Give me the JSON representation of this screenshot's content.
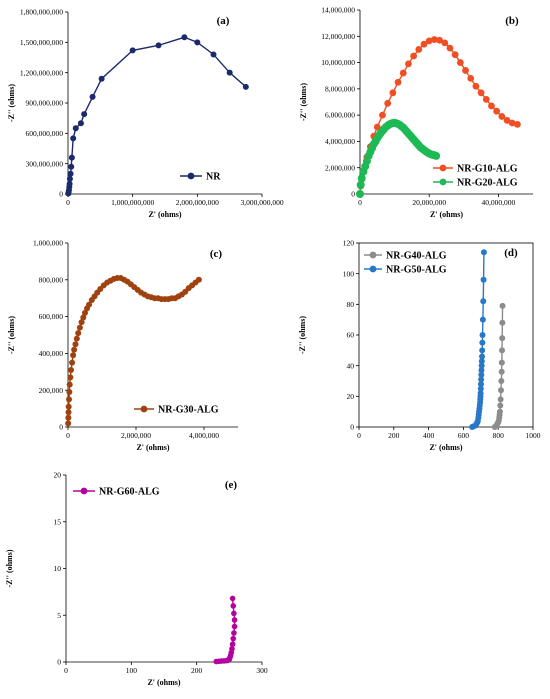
{
  "chart_data": [
    {
      "type": "line",
      "panel_label": "(a)",
      "xlabel": "Z' (ohms)",
      "ylabel": "-Z'' (ohms)",
      "xlim": [
        0,
        3000000000
      ],
      "ylim": [
        0,
        1800000000
      ],
      "xticks": [
        0,
        1000000000,
        2000000000,
        3000000000
      ],
      "xtick_labels": [
        "0",
        "1,000,000,000",
        "2,000,000,000",
        "3,000,000,000"
      ],
      "yticks": [
        0,
        300000000,
        600000000,
        900000000,
        1200000000,
        1500000000,
        1800000000
      ],
      "ytick_labels": [
        "0",
        "300,000,000",
        "600,000,000",
        "900,000,000",
        "1,200,000,000",
        "1,500,000,000",
        "1,800,000,000"
      ],
      "legend_position": "bottom-right",
      "series": [
        {
          "name": "NR",
          "color": "#1a2a6c",
          "marker_size": 3,
          "x": [
            5000000,
            10000000,
            15000000,
            20000000,
            25000000,
            30000000,
            40000000,
            50000000,
            60000000,
            80000000,
            120000000,
            200000000,
            250000000,
            380000000,
            520000000,
            1000000000,
            1400000000,
            1800000000,
            2000000000,
            2250000000,
            2500000000,
            2750000000
          ],
          "y": [
            5000000,
            20000000,
            40000000,
            70000000,
            100000000,
            150000000,
            200000000,
            270000000,
            360000000,
            550000000,
            650000000,
            700000000,
            790000000,
            960000000,
            1140000000,
            1420000000,
            1470000000,
            1550000000,
            1500000000,
            1380000000,
            1200000000,
            1060000000
          ]
        }
      ]
    },
    {
      "type": "line",
      "panel_label": "(b)",
      "xlabel": "Z' (ohms)",
      "ylabel": "-Z'' (ohms)",
      "xlim": [
        0,
        50000000
      ],
      "ylim": [
        0,
        14000000
      ],
      "xticks": [
        0,
        20000000,
        40000000
      ],
      "xtick_labels": [
        "0",
        "20,000,000",
        "40,000,000"
      ],
      "yticks": [
        0,
        2000000,
        4000000,
        6000000,
        8000000,
        10000000,
        12000000,
        14000000
      ],
      "ytick_labels": [
        "0",
        "2,000,000",
        "4,000,000",
        "6,000,000",
        "8,000,000",
        "10,000,000",
        "12,000,000",
        "14,000,000"
      ],
      "legend_position": "bottom-right",
      "series": [
        {
          "name": "NR-G10-ALG",
          "color": "#f04e23",
          "marker_size": 3.4,
          "x": [
            0,
            200000,
            500000,
            1000000,
            2000000,
            3000000,
            4000000,
            5000000,
            6500000,
            8000000,
            9500000,
            11000000,
            12500000,
            14000000,
            15500000,
            17000000,
            18500000,
            20000000,
            21500000,
            23000000,
            24500000,
            26000000,
            27500000,
            29000000,
            30500000,
            32000000,
            33500000,
            35000000,
            36500000,
            38000000,
            39500000,
            41000000,
            42500000,
            44000000,
            45500000
          ],
          "y": [
            0,
            600000,
            1100000,
            1800000,
            2800000,
            3600000,
            4400000,
            5100000,
            6000000,
            6900000,
            7700000,
            8500000,
            9200000,
            9900000,
            10500000,
            11000000,
            11400000,
            11650000,
            11750000,
            11700000,
            11500000,
            11100000,
            10600000,
            10000000,
            9400000,
            8800000,
            8200000,
            7700000,
            7200000,
            6700000,
            6300000,
            5900000,
            5600000,
            5400000,
            5300000
          ]
        },
        {
          "name": "NR-G20-ALG",
          "color": "#1db954",
          "marker_size": 4,
          "x": [
            0,
            200000,
            500000,
            1000000,
            1500000,
            2000000,
            2500000,
            3000000,
            3500000,
            4000000,
            4500000,
            5000000,
            5500000,
            6000000,
            6500000,
            7000000,
            7500000,
            8000000,
            8500000,
            9000000,
            9500000,
            10000000,
            10500000,
            11000000,
            11500000,
            12000000,
            12500000,
            13000000,
            13500000,
            14000000,
            14500000,
            15000000,
            15500000,
            16000000,
            16500000,
            17000000,
            17500000,
            18000000,
            18500000,
            19000000,
            19500000,
            20000000,
            20500000,
            21000000,
            21500000,
            22000000
          ],
          "y": [
            0,
            700000,
            1200000,
            1700000,
            2100000,
            2500000,
            2900000,
            3200000,
            3500000,
            3800000,
            4000000,
            4250000,
            4450000,
            4650000,
            4800000,
            4950000,
            5100000,
            5200000,
            5300000,
            5350000,
            5400000,
            5400000,
            5380000,
            5330000,
            5250000,
            5150000,
            5050000,
            4900000,
            4750000,
            4600000,
            4450000,
            4300000,
            4150000,
            4000000,
            3850000,
            3700000,
            3550000,
            3450000,
            3350000,
            3250000,
            3150000,
            3080000,
            3020000,
            2980000,
            2950000,
            2900000
          ]
        }
      ]
    },
    {
      "type": "line",
      "panel_label": "(c)",
      "xlabel": "Z' (ohms)",
      "ylabel": "-Z'' (ohms)",
      "xlim": [
        0,
        5000000
      ],
      "ylim": [
        0,
        1000000
      ],
      "xticks": [
        0,
        2000000,
        4000000
      ],
      "xtick_labels": [
        "0",
        "2,000,000",
        "4,000,000"
      ],
      "yticks": [
        0,
        200000,
        400000,
        600000,
        800000,
        1000000
      ],
      "ytick_labels": [
        "0",
        "200,000",
        "400,000",
        "600,000",
        "800,000",
        "1,000,000"
      ],
      "legend_position": "bottom-right",
      "series": [
        {
          "name": "NR-G30-ALG",
          "color": "#a0420f",
          "marker_size": 3,
          "x": [
            5000,
            10000,
            15000,
            20000,
            30000,
            40000,
            50000,
            70000,
            90000,
            120000,
            150000,
            180000,
            220000,
            260000,
            300000,
            350000,
            400000,
            450000,
            500000,
            560000,
            620000,
            700000,
            780000,
            860000,
            950000,
            1050000,
            1150000,
            1250000,
            1350000,
            1450000,
            1550000,
            1650000,
            1750000,
            1850000,
            1950000,
            2050000,
            2150000,
            2250000,
            2350000,
            2450000,
            2550000,
            2650000,
            2750000,
            2850000,
            2950000,
            3050000,
            3150000,
            3250000,
            3350000,
            3450000,
            3550000,
            3650000,
            3750000,
            3850000
          ],
          "y": [
            20000,
            50000,
            80000,
            110000,
            150000,
            190000,
            230000,
            270000,
            310000,
            350000,
            390000,
            420000,
            450000,
            480000,
            510000,
            540000,
            570000,
            595000,
            620000,
            645000,
            665000,
            690000,
            710000,
            730000,
            750000,
            770000,
            785000,
            795000,
            805000,
            810000,
            810000,
            800000,
            790000,
            775000,
            760000,
            745000,
            730000,
            720000,
            710000,
            705000,
            700000,
            700000,
            695000,
            695000,
            695000,
            700000,
            700000,
            710000,
            720000,
            735000,
            755000,
            770000,
            785000,
            800000
          ]
        }
      ]
    },
    {
      "type": "line",
      "panel_label": "(d)",
      "xlabel": "Z' (ohms)",
      "ylabel": "-Z'' (ohms)",
      "xlim": [
        0,
        1000
      ],
      "ylim": [
        0,
        120
      ],
      "xticks": [
        0,
        200,
        400,
        600,
        800,
        1000
      ],
      "xtick_labels": [
        "0",
        "200",
        "400",
        "600",
        "800",
        "1000"
      ],
      "yticks": [
        0,
        20,
        40,
        60,
        80,
        100,
        120
      ],
      "ytick_labels": [
        "0",
        "20",
        "40",
        "60",
        "80",
        "100",
        "120"
      ],
      "legend_position": "top-left",
      "series": [
        {
          "name": "NR-G40-ALG",
          "color": "#8c8c8c",
          "marker_size": 3,
          "x": [
            780,
            790,
            795,
            800,
            803,
            806,
            808,
            810,
            812,
            814,
            816,
            818,
            820,
            821,
            822,
            823,
            824,
            825
          ],
          "y": [
            0,
            1,
            2,
            3,
            4,
            6,
            8,
            10,
            14,
            18,
            24,
            30,
            36,
            42,
            50,
            58,
            68,
            79
          ]
        },
        {
          "name": "NR-G50-ALG",
          "color": "#2878c8",
          "marker_size": 3,
          "x": [
            650,
            660,
            670,
            675,
            680,
            683,
            686,
            688,
            690,
            692,
            694,
            696,
            697,
            698,
            699,
            700,
            701,
            702,
            703,
            704,
            705,
            706,
            707,
            708,
            709,
            710,
            712,
            714,
            716,
            718
          ],
          "y": [
            0,
            0.5,
            1,
            2,
            3,
            4,
            6,
            8,
            10,
            12,
            14,
            16,
            18,
            20,
            22,
            25,
            28,
            31,
            34,
            37,
            40,
            43,
            46,
            50,
            55,
            60,
            70,
            82,
            96,
            114
          ]
        }
      ]
    },
    {
      "type": "line",
      "panel_label": "(e)",
      "xlabel": "Z' (ohms)",
      "ylabel": "-Z'' (ohms)",
      "xlim": [
        0,
        300
      ],
      "ylim": [
        0,
        20
      ],
      "xticks": [
        0,
        100,
        200,
        300
      ],
      "xtick_labels": [
        "0",
        "100",
        "200",
        "300"
      ],
      "yticks": [
        0,
        5,
        10,
        15,
        20
      ],
      "ytick_labels": [
        "0",
        "5",
        "10",
        "15",
        "20"
      ],
      "legend_position": "top-left",
      "series": [
        {
          "name": "NR-G60-ALG",
          "color": "#b4009e",
          "marker_size": 2.8,
          "x": [
            230,
            234,
            238,
            242,
            246,
            248,
            250,
            251,
            252,
            253,
            254,
            255,
            256,
            257,
            258,
            258,
            257,
            256,
            255
          ],
          "y": [
            0.05,
            0.08,
            0.1,
            0.12,
            0.15,
            0.2,
            0.3,
            0.5,
            0.7,
            1.0,
            1.4,
            1.9,
            2.5,
            3.1,
            3.8,
            4.5,
            5.2,
            6.0,
            6.8
          ]
        }
      ]
    }
  ]
}
